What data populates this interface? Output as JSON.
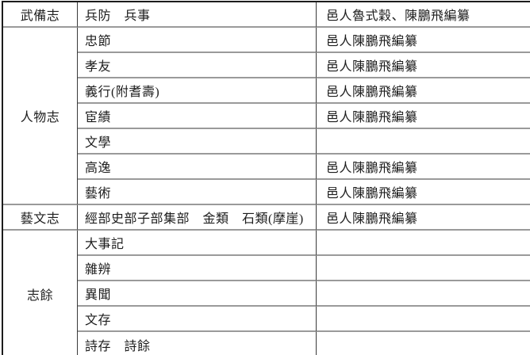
{
  "colors": {
    "outer_border": "#1c1c1c",
    "inner_vertical_line": "#3a3a3a",
    "inner_horizontal_line": "#9a9a9a",
    "text": "#1d1d1d",
    "background": "#ffffff"
  },
  "table": {
    "sections": [
      {
        "category": "武備志",
        "rows": [
          {
            "sub": "兵防　兵事",
            "editor": "邑人魯式穀、陳鵬飛編纂"
          }
        ]
      },
      {
        "category": "人物志",
        "rows": [
          {
            "sub": "忠節",
            "editor": "邑人陳鵬飛編纂"
          },
          {
            "sub": "孝友",
            "editor": "邑人陳鵬飛編纂"
          },
          {
            "sub": "義行(附耆壽)",
            "editor": "邑人陳鵬飛編纂"
          },
          {
            "sub": "宦績",
            "editor": "邑人陳鵬飛編纂"
          },
          {
            "sub": "文學",
            "editor": ""
          },
          {
            "sub": "高逸",
            "editor": "邑人陳鵬飛編纂"
          },
          {
            "sub": "藝術",
            "editor": "邑人陳鵬飛編纂"
          }
        ]
      },
      {
        "category": "藝文志",
        "rows": [
          {
            "sub": "經部史部子部集部　金類　石類(摩崖)",
            "editor": "邑人陳鵬飛編纂"
          }
        ]
      },
      {
        "category": "志餘",
        "rows": [
          {
            "sub": "大事記",
            "editor": ""
          },
          {
            "sub": "雜辨",
            "editor": ""
          },
          {
            "sub": "異聞",
            "editor": ""
          },
          {
            "sub": "文存",
            "editor": ""
          },
          {
            "sub": "詩存　詩餘",
            "editor": ""
          }
        ]
      }
    ]
  }
}
